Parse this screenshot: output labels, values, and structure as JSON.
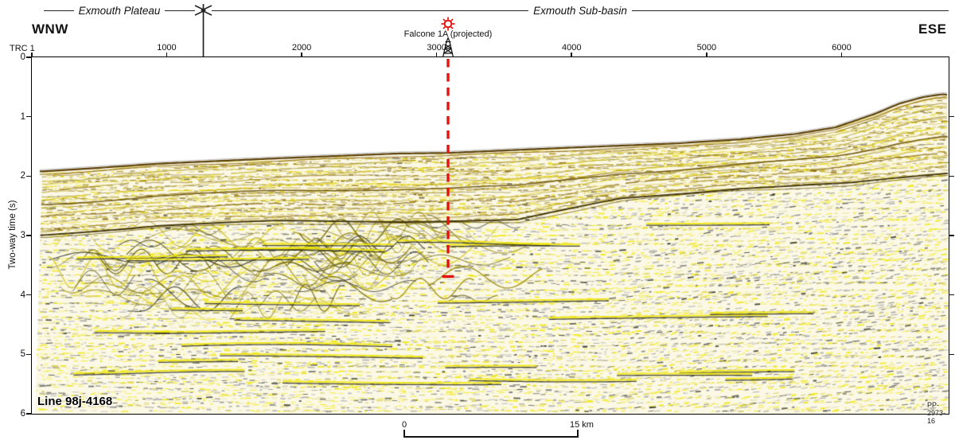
{
  "regions": {
    "left": {
      "label": "Exmouth Plateau"
    },
    "right": {
      "label": "Exmouth Sub-basin"
    }
  },
  "orientations": {
    "left": "WNW",
    "right": "ESE"
  },
  "axes": {
    "trace": {
      "origin_label": "TRC 1",
      "ticks": [
        "1000",
        "2000",
        "3000",
        "4000",
        "5000",
        "6000"
      ]
    },
    "time": {
      "label": "Two-way time (s)",
      "ticks": [
        "0",
        "1",
        "2",
        "3",
        "4",
        "5",
        "6"
      ]
    }
  },
  "well": {
    "label": "Falcone 1A (projected)",
    "symbol": "red-show-sun-symbol-and-derrick",
    "trace": 3085,
    "projection_top_twt_s": 0.0,
    "projection_td_twt_s": 3.7,
    "color": "#e31410"
  },
  "footer": {
    "line_id": "Line 98j-4168",
    "plate_id": "PP-2973-16"
  },
  "scale_bar": {
    "left_label": "0",
    "right_label": "15 km",
    "length_km": 15
  },
  "colors": {
    "annotation_red": "#e31410",
    "frame_black": "#000000",
    "seafloor_brown": "#5a3e06",
    "reflector_yellow": "#f0e600",
    "wash_background": "#fbf8e6"
  },
  "chart_data": {
    "type": "heatmap",
    "description": "Seismic reflection two-way-time section across the Exmouth Plateau / Exmouth Sub-basin boundary with Falcone 1A well projection",
    "title": "Line 98j-4168",
    "xlabel": "TRC (trace number)",
    "ylabel": "Two-way time (s)",
    "xlim": [
      1,
      6800
    ],
    "ylim": [
      0,
      6
    ],
    "y_inverted": true,
    "plateau_subbasin_boundary_trace": 1276,
    "series": [
      {
        "name": "seafloor",
        "x": [
          88,
          500,
          943,
          1828,
          2712,
          3085,
          3892,
          4776,
          5248,
          5660,
          5954,
          6250,
          6427,
          6604,
          6751,
          6800
        ],
        "y": [
          1.92,
          1.86,
          1.79,
          1.7,
          1.62,
          1.61,
          1.53,
          1.45,
          1.38,
          1.29,
          1.18,
          0.95,
          0.78,
          0.67,
          0.62,
          0.64
        ]
      },
      {
        "name": "base_of_layered_unit_reflector",
        "x": [
          88,
          943,
          1828,
          2712,
          3597,
          4363,
          5248,
          6073,
          6800
        ],
        "y": [
          2.99,
          2.83,
          2.76,
          2.76,
          2.74,
          2.38,
          2.2,
          2.12,
          1.95
        ]
      }
    ],
    "well_marker": {
      "name": "Falcone 1A (projected)",
      "trace": 3085,
      "twt_top_s": 0.0,
      "twt_bottom_s": 3.7
    }
  }
}
